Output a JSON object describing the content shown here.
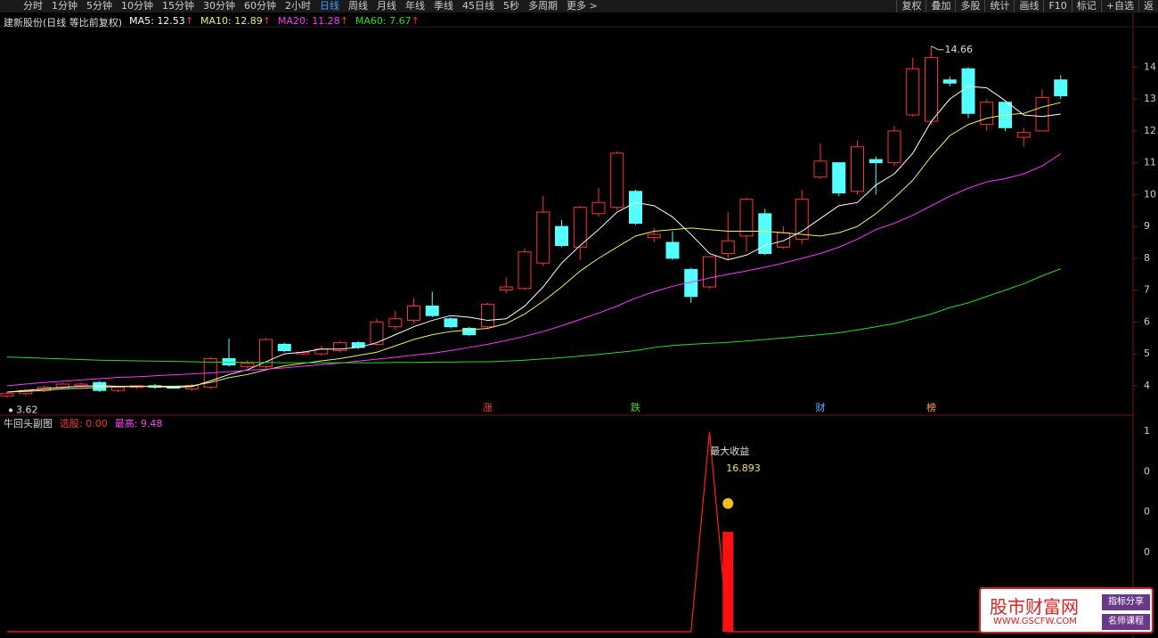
{
  "toolbar": {
    "periods": [
      "分时",
      "1分钟",
      "5分钟",
      "10分钟",
      "15分钟",
      "30分钟",
      "60分钟",
      "2小时",
      "日线",
      "周线",
      "月线",
      "年线",
      "季线",
      "45日线",
      "5秒",
      "多周期",
      "更多 >"
    ],
    "tools": [
      "复权",
      "叠加",
      "多股",
      "统计",
      "画线",
      "F10",
      "标记",
      "+自选",
      "返"
    ]
  },
  "main_chart": {
    "type": "candlestick",
    "title": "建新股份(日线 等比前复权)",
    "up_color": "#ff3232",
    "down_color": "#54ffff",
    "open": [
      3.68,
      3.75,
      3.85,
      3.95,
      4.0,
      4.1,
      3.85,
      3.95,
      4.0,
      3.98,
      3.9,
      3.95,
      4.85,
      4.6,
      4.6,
      5.3,
      5.0,
      5.0,
      5.1,
      5.35,
      5.3,
      5.85,
      6.05,
      6.5,
      6.1,
      5.8,
      5.85,
      7.0,
      7.05,
      7.85,
      9.0,
      8.35,
      9.4,
      9.6,
      10.1,
      8.65,
      8.5,
      7.65,
      7.1,
      8.15,
      8.7,
      9.4,
      8.35,
      8.6,
      10.55,
      11.0,
      10.1,
      11.1,
      11.0,
      12.5,
      12.3,
      13.6,
      13.95,
      12.2,
      12.9,
      11.8,
      12.0,
      13.6
    ],
    "high": [
      3.8,
      3.9,
      4.0,
      4.1,
      4.1,
      4.15,
      4.0,
      4.0,
      4.05,
      4.0,
      4.05,
      4.9,
      5.48,
      4.8,
      5.5,
      5.35,
      5.1,
      5.25,
      5.4,
      5.4,
      6.1,
      6.35,
      6.75,
      6.95,
      6.15,
      5.85,
      6.6,
      7.4,
      8.3,
      9.95,
      9.2,
      9.65,
      10.2,
      11.35,
      10.15,
      8.95,
      8.85,
      7.7,
      8.05,
      9.45,
      9.9,
      9.55,
      9.0,
      10.15,
      11.6,
      11.0,
      11.7,
      11.2,
      12.15,
      14.3,
      14.66,
      13.7,
      14.0,
      13.0,
      12.9,
      12.1,
      13.3,
      13.75
    ],
    "low": [
      3.62,
      3.7,
      3.8,
      3.9,
      3.95,
      3.8,
      3.8,
      3.9,
      3.9,
      3.9,
      3.85,
      3.9,
      4.6,
      4.55,
      4.55,
      5.05,
      4.95,
      4.95,
      5.05,
      5.15,
      5.25,
      5.75,
      5.95,
      6.15,
      5.8,
      5.55,
      5.8,
      6.9,
      7.0,
      7.75,
      8.35,
      7.95,
      9.3,
      9.5,
      9.05,
      8.5,
      7.95,
      6.6,
      7.05,
      7.95,
      8.2,
      8.1,
      8.3,
      8.45,
      10.5,
      9.95,
      10.0,
      10.0,
      10.9,
      12.45,
      12.2,
      13.4,
      12.4,
      12.0,
      12.0,
      11.5,
      12.0,
      13.0
    ],
    "close": [
      3.75,
      3.85,
      3.95,
      4.05,
      4.05,
      3.85,
      3.95,
      4.0,
      3.95,
      3.92,
      4.0,
      4.85,
      4.65,
      4.7,
      5.45,
      5.1,
      5.05,
      5.15,
      5.35,
      5.2,
      6.0,
      6.1,
      6.5,
      6.2,
      5.85,
      5.6,
      6.55,
      7.1,
      8.2,
      9.45,
      8.4,
      9.6,
      9.75,
      11.3,
      9.1,
      8.75,
      8.0,
      6.8,
      8.05,
      8.55,
      9.85,
      8.15,
      8.8,
      9.85,
      11.05,
      10.05,
      11.5,
      11.0,
      12.0,
      13.95,
      14.3,
      13.5,
      12.55,
      12.9,
      12.1,
      11.95,
      13.05,
      13.1
    ],
    "ylim": [
      3.1,
      15.55
    ],
    "yticks": [
      4,
      5,
      6,
      7,
      8,
      9,
      10,
      11,
      12,
      13,
      14
    ],
    "ma": [
      {
        "name": "MA5",
        "color": "#ffffff",
        "values": [
          3.8,
          3.85,
          3.9,
          3.95,
          3.98,
          4.0,
          3.98,
          3.98,
          3.97,
          3.95,
          3.97,
          4.15,
          4.35,
          4.5,
          4.75,
          5.0,
          5.05,
          5.15,
          5.15,
          5.2,
          5.35,
          5.6,
          5.85,
          6.05,
          6.2,
          6.15,
          6.05,
          6.1,
          6.5,
          7.1,
          7.85,
          8.4,
          8.9,
          9.45,
          9.75,
          9.65,
          9.3,
          8.75,
          8.15,
          7.95,
          8.1,
          8.4,
          8.55,
          8.85,
          9.25,
          9.65,
          9.75,
          10.3,
          10.65,
          11.3,
          12.3,
          13.0,
          13.4,
          13.35,
          12.95,
          12.5,
          12.45,
          12.53
        ]
      },
      {
        "name": "MA10",
        "color": "#f0f060",
        "values": [
          3.8,
          3.82,
          3.85,
          3.9,
          3.92,
          3.95,
          3.97,
          3.97,
          3.98,
          3.98,
          4.0,
          4.1,
          4.25,
          4.35,
          4.5,
          4.62,
          4.7,
          4.78,
          4.85,
          4.95,
          5.05,
          5.25,
          5.45,
          5.6,
          5.7,
          5.75,
          5.8,
          5.95,
          6.25,
          6.65,
          7.1,
          7.6,
          8.0,
          8.35,
          8.7,
          8.85,
          8.9,
          8.95,
          8.9,
          8.85,
          8.85,
          8.85,
          8.8,
          8.75,
          8.7,
          8.8,
          9.0,
          9.4,
          9.9,
          10.45,
          11.2,
          11.85,
          12.2,
          12.4,
          12.5,
          12.55,
          12.75,
          12.89
        ]
      },
      {
        "name": "MA20",
        "color": "#ff33ff",
        "values": [
          4.0,
          4.05,
          4.1,
          4.14,
          4.18,
          4.22,
          4.26,
          4.28,
          4.31,
          4.34,
          4.37,
          4.4,
          4.44,
          4.48,
          4.52,
          4.56,
          4.61,
          4.66,
          4.71,
          4.77,
          4.83,
          4.89,
          4.96,
          5.02,
          5.1,
          5.2,
          5.3,
          5.42,
          5.55,
          5.7,
          5.88,
          6.08,
          6.28,
          6.5,
          6.75,
          6.95,
          7.12,
          7.25,
          7.38,
          7.5,
          7.6,
          7.72,
          7.85,
          8.0,
          8.15,
          8.35,
          8.6,
          8.9,
          9.1,
          9.35,
          9.65,
          9.95,
          10.2,
          10.4,
          10.5,
          10.65,
          10.9,
          11.28
        ]
      },
      {
        "name": "MA60",
        "color": "#22dd22",
        "values": [
          4.9,
          4.88,
          4.86,
          4.84,
          4.82,
          4.8,
          4.79,
          4.78,
          4.77,
          4.76,
          4.75,
          4.74,
          4.74,
          4.73,
          4.73,
          4.72,
          4.72,
          4.72,
          4.72,
          4.72,
          4.72,
          4.73,
          4.73,
          4.74,
          4.74,
          4.75,
          4.75,
          4.77,
          4.8,
          4.84,
          4.88,
          4.93,
          4.98,
          5.04,
          5.1,
          5.2,
          5.26,
          5.3,
          5.33,
          5.36,
          5.4,
          5.45,
          5.5,
          5.55,
          5.6,
          5.66,
          5.75,
          5.85,
          5.95,
          6.1,
          6.25,
          6.45,
          6.6,
          6.8,
          7.0,
          7.2,
          7.45,
          7.67
        ]
      }
    ],
    "high_label": "14.66",
    "low_label": "3.62",
    "markers": [
      null,
      null,
      null,
      null,
      null,
      null,
      null,
      null,
      null,
      null,
      null,
      null,
      null,
      null,
      null,
      null,
      null,
      null,
      null,
      null,
      null,
      null,
      null,
      null,
      null,
      null,
      {
        "text": "涨",
        "color": "#ff4040"
      },
      null,
      null,
      null,
      null,
      null,
      null,
      null,
      {
        "text": "跌",
        "color": "#30e030"
      },
      null,
      null,
      null,
      null,
      null,
      null,
      null,
      null,
      null,
      {
        "text": "财",
        "color": "#6fa8ff"
      },
      null,
      null,
      null,
      null,
      null,
      {
        "text": "榜",
        "color": "#ffa040"
      },
      null,
      null,
      null,
      null,
      null,
      null,
      null
    ]
  },
  "sub_chart": {
    "type": "line",
    "title": "牛回头副图",
    "items": [
      {
        "name": "选股",
        "value": "0.00",
        "color": "#ff3232"
      },
      {
        "name": "最高",
        "value": "9.48",
        "color": "#ff44ff"
      }
    ],
    "ylim": [
      0,
      1.03
    ],
    "axis_texts": [
      "1",
      "0",
      "0",
      "0"
    ],
    "color": "#ff2020",
    "values": [
      0,
      0,
      0,
      0,
      0,
      0,
      0,
      0,
      0,
      0,
      0,
      0,
      0,
      0,
      0,
      0,
      0,
      0,
      0,
      0,
      0,
      0,
      0,
      0,
      0,
      0,
      0,
      0,
      0,
      0,
      0,
      0,
      0,
      0,
      0,
      0,
      0,
      0,
      1,
      0,
      0,
      0,
      0,
      0,
      0,
      0,
      0,
      0,
      0,
      0,
      0,
      0,
      0,
      0,
      0,
      0,
      0,
      0
    ],
    "bars": [
      null,
      null,
      null,
      null,
      null,
      null,
      null,
      null,
      null,
      null,
      null,
      null,
      null,
      null,
      null,
      null,
      null,
      null,
      null,
      null,
      null,
      null,
      null,
      null,
      null,
      null,
      null,
      null,
      null,
      null,
      null,
      null,
      null,
      null,
      null,
      null,
      null,
      null,
      null,
      0.5,
      null,
      null,
      null,
      null,
      null,
      null,
      null,
      null,
      null,
      null,
      null,
      null,
      null,
      null,
      null,
      null,
      null,
      null
    ],
    "annotation": {
      "title": "最大收益",
      "value": "16.893"
    }
  },
  "watermark": {
    "name": "股市财富网",
    "url": "WWW.GSCFW.COM",
    "tags": [
      "指标分享",
      "名师课程"
    ]
  }
}
